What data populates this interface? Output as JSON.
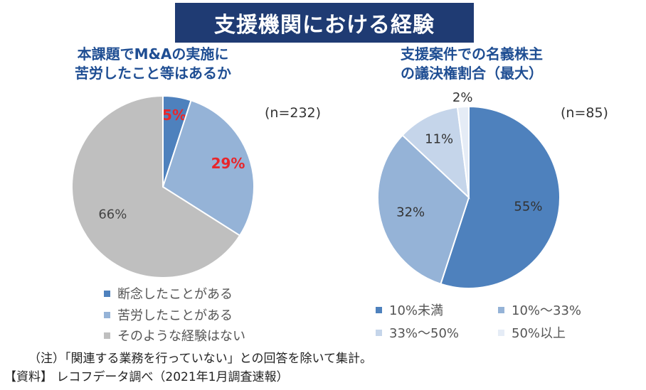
{
  "banner": {
    "title": "支援機関における経験"
  },
  "left": {
    "title_line1": "本課題でM&Aの実施に",
    "title_line2": "苦労したこと等はあるか",
    "n_label": "(n=232)"
  },
  "right": {
    "title_line1": "支援案件での名義株主",
    "title_line2": "の議決権割合（最大）",
    "n_label": "(n=85)"
  },
  "notes": {
    "note": "（注）「関連する業務を行っていない」との回答を除いて集計。",
    "source": "【資料】 レコフデータ調べ（2021年1月調査速報）"
  },
  "chart_data": [
    {
      "type": "pie",
      "title": "本課題でM&Aの実施に苦労したこと等はあるか",
      "categories": [
        "断念したことがある",
        "苦労したことがある",
        "そのような経験はない"
      ],
      "values": [
        5,
        29,
        66
      ],
      "labels": [
        "5%",
        "29%",
        "66%"
      ],
      "colors": [
        "#4e81bd",
        "#95b3d7",
        "#bfbfbf"
      ],
      "label_colors": [
        "#e8262b",
        "#e8262b",
        "#444444"
      ],
      "legend_position": "bottom"
    },
    {
      "type": "pie",
      "title": "支援案件での名義株主の議決権割合（最大）",
      "categories": [
        "10%未満",
        "10%～33%",
        "33%～50%",
        "50%以上"
      ],
      "values": [
        55,
        32,
        11,
        2
      ],
      "labels": [
        "55%",
        "32%",
        "11%",
        "2%"
      ],
      "colors": [
        "#4e81bd",
        "#95b3d7",
        "#c5d5ea",
        "#e5ecf6"
      ],
      "label_colors": [
        "#333333",
        "#333333",
        "#333333",
        "#333333"
      ],
      "legend_position": "bottom"
    }
  ]
}
